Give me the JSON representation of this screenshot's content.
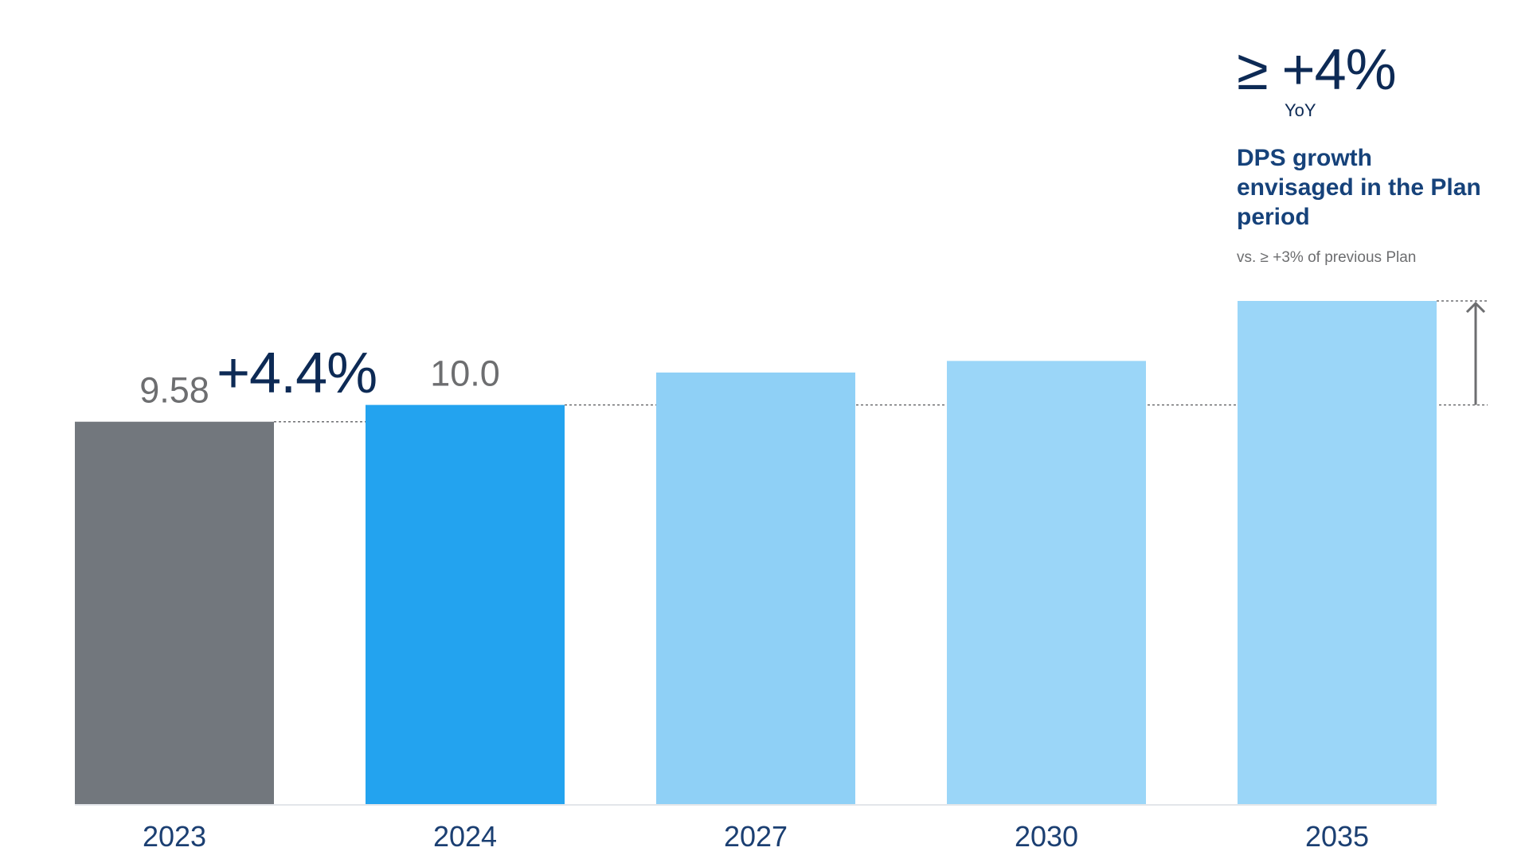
{
  "chart_data": {
    "type": "bar",
    "categories": [
      "2023",
      "2024",
      "2027",
      "2030",
      "2035"
    ],
    "values": [
      9.58,
      10.0,
      10.81,
      11.1,
      12.6
    ],
    "data_labels": [
      "9.58",
      "10.0",
      "",
      "",
      ""
    ],
    "colors": [
      "#72777d",
      "#23a3ef",
      "#8fd0f6",
      "#9bd6f8",
      "#9bd6f8"
    ],
    "ylim": [
      0,
      12.6
    ],
    "grid": false,
    "title": "",
    "xlabel": "",
    "ylabel": ""
  },
  "annotations": {
    "growth_label": "+4.4%",
    "callout_symbol": "≥",
    "callout_value": "+4%",
    "callout_unit": "YoY",
    "callout_description": "DPS growth envisaged in the Plan period",
    "callout_note": "vs. ≥ +3% of previous Plan"
  }
}
